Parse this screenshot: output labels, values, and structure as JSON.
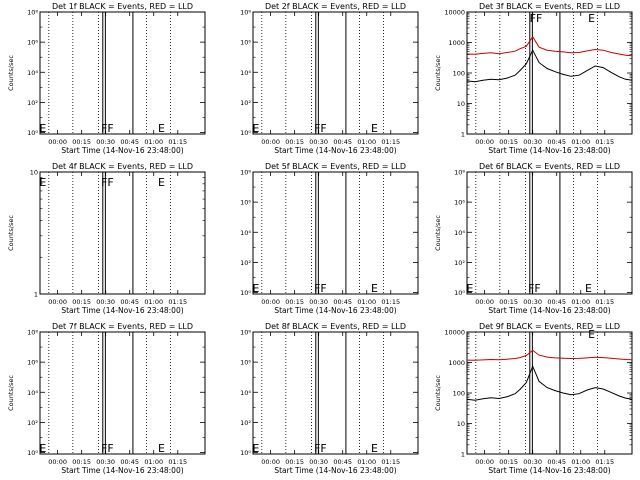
{
  "chart_data": [
    {
      "type": "line",
      "title": "Det 1f BLACK = Events, RED = LLD",
      "xlabel": "Start Time (14-Nov-16 23:48:00)",
      "ylabel": "Counts/sec",
      "xticks": [
        "00:00",
        "00:15",
        "00:30",
        "00:45",
        "01:00",
        "01:15"
      ],
      "yscale": "log",
      "ylim": [
        0.8,
        100000000
      ],
      "ytick_labels": [
        "10⁰",
        "10²",
        "10⁴",
        "10⁶",
        "10⁸"
      ],
      "ytick_values": [
        1,
        100,
        10000,
        1000000,
        100000000
      ],
      "markers": [
        "E",
        "FF",
        "E"
      ],
      "series": []
    },
    {
      "type": "line",
      "title": "Det 2f BLACK = Events, RED = LLD",
      "xlabel": "Start Time (14-Nov-16 23:48:00)",
      "ylabel": "",
      "xticks": [
        "00:00",
        "00:15",
        "00:30",
        "00:45",
        "01:00",
        "01:15"
      ],
      "yscale": "log",
      "ylim": [
        0.8,
        100000000
      ],
      "ytick_labels": [
        "10⁰",
        "10²",
        "10⁴",
        "10⁶",
        "10⁸"
      ],
      "ytick_values": [
        1,
        100,
        10000,
        1000000,
        100000000
      ],
      "markers": [
        "E",
        "FF",
        "E"
      ],
      "series": []
    },
    {
      "type": "line",
      "title": "Det 3f BLACK = Events, RED = LLD",
      "xlabel": "Start Time (14-Nov-16 23:48:00)",
      "ylabel": "Counts/sec",
      "xticks": [
        "00:00",
        "00:15",
        "00:30",
        "00:45",
        "01:00",
        "01:15"
      ],
      "yscale": "log",
      "ylim": [
        1,
        10000
      ],
      "ytick_labels": [
        "1",
        "10",
        "100",
        "1000",
        "10000"
      ],
      "ytick_values": [
        1,
        10,
        100,
        1000,
        10000
      ],
      "markers": [
        "FF",
        "E"
      ],
      "series": [
        {
          "color": "#cc0000",
          "x": [
            -11,
            -6,
            -1,
            4,
            9,
            14,
            19,
            22,
            26,
            30,
            34,
            39,
            44,
            49,
            54,
            59,
            64,
            69,
            74,
            79,
            84,
            88,
            92
          ],
          "y": [
            420,
            410,
            440,
            460,
            430,
            470,
            520,
            620,
            750,
            1550,
            700,
            560,
            520,
            490,
            460,
            470,
            530,
            590,
            560,
            470,
            420,
            380,
            370
          ]
        },
        {
          "color": "#000000",
          "x": [
            -11,
            -6,
            -1,
            4,
            9,
            14,
            19,
            22,
            26,
            30,
            34,
            39,
            44,
            49,
            54,
            59,
            64,
            69,
            74,
            79,
            84,
            88,
            92
          ],
          "y": [
            55,
            52,
            58,
            62,
            60,
            68,
            85,
            120,
            200,
            560,
            220,
            140,
            110,
            90,
            78,
            85,
            120,
            170,
            150,
            105,
            75,
            62,
            58
          ]
        }
      ]
    },
    {
      "type": "line",
      "title": "Det 4f BLACK = Events, RED = LLD",
      "xlabel": "Start Time (14-Nov-16 23:48:00)",
      "ylabel": "Counts/sec",
      "xticks": [
        "00:00",
        "00:15",
        "00:30",
        "00:45",
        "01:00",
        "01:15"
      ],
      "yscale": "log",
      "ylim": [
        1,
        10
      ],
      "ytick_labels": [
        "1",
        "10"
      ],
      "ytick_values": [
        1,
        10
      ],
      "markers": [
        "E",
        "FF",
        "E"
      ],
      "series": []
    },
    {
      "type": "line",
      "title": "Det 5f BLACK = Events, RED = LLD",
      "xlabel": "Start Time (14-Nov-16 23:48:00)",
      "ylabel": "",
      "xticks": [
        "00:00",
        "00:15",
        "00:30",
        "00:45",
        "01:00",
        "01:15"
      ],
      "yscale": "log",
      "ylim": [
        0.8,
        100000000
      ],
      "ytick_labels": [
        "10⁰",
        "10²",
        "10⁴",
        "10⁶",
        "10⁸"
      ],
      "ytick_values": [
        1,
        100,
        10000,
        1000000,
        100000000
      ],
      "markers": [
        "E",
        "FF",
        "E"
      ],
      "series": []
    },
    {
      "type": "line",
      "title": "Det 6f BLACK = Events, RED = LLD",
      "xlabel": "Start Time (14-Nov-16 23:48:00)",
      "ylabel": "Counts/sec",
      "xticks": [
        "00:00",
        "00:15",
        "00:30",
        "00:45",
        "01:00",
        "01:15"
      ],
      "yscale": "log",
      "ylim": [
        0.8,
        100000000
      ],
      "ytick_labels": [
        "10⁰",
        "10²",
        "10⁴",
        "10⁶",
        "10⁸"
      ],
      "ytick_values": [
        1,
        100,
        10000,
        1000000,
        100000000
      ],
      "markers": [
        "E",
        "FF",
        "E"
      ],
      "series": []
    },
    {
      "type": "line",
      "title": "Det 7f BLACK = Events, RED = LLD",
      "xlabel": "Start Time (14-Nov-16 23:48:00)",
      "ylabel": "Counts/sec",
      "xticks": [
        "00:00",
        "00:15",
        "00:30",
        "00:45",
        "01:00",
        "01:15"
      ],
      "yscale": "log",
      "ylim": [
        0.8,
        100000000
      ],
      "ytick_labels": [
        "10⁰",
        "10²",
        "10⁴",
        "10⁶",
        "10⁸"
      ],
      "ytick_values": [
        1,
        100,
        10000,
        1000000,
        100000000
      ],
      "markers": [
        "E",
        "FF",
        "E"
      ],
      "series": []
    },
    {
      "type": "line",
      "title": "Det 8f BLACK = Events, RED = LLD",
      "xlabel": "Start Time (14-Nov-16 23:48:00)",
      "ylabel": "",
      "xticks": [
        "00:00",
        "00:15",
        "00:30",
        "00:45",
        "01:00",
        "01:15"
      ],
      "yscale": "log",
      "ylim": [
        0.8,
        100000000
      ],
      "ytick_labels": [
        "10⁰",
        "10²",
        "10⁴",
        "10⁶",
        "10⁸"
      ],
      "ytick_values": [
        1,
        100,
        10000,
        1000000,
        100000000
      ],
      "markers": [
        "E",
        "FF",
        "E"
      ],
      "series": []
    },
    {
      "type": "line",
      "title": "Det 9f BLACK = Events, RED = LLD",
      "xlabel": "Start Time (14-Nov-16 23:48:00)",
      "ylabel": "Counts/sec",
      "xticks": [
        "00:00",
        "00:15",
        "00:30",
        "00:45",
        "01:00",
        "01:15"
      ],
      "yscale": "log",
      "ylim": [
        1,
        10000
      ],
      "ytick_labels": [
        "1",
        "10",
        "100",
        "1000",
        "10000"
      ],
      "ytick_values": [
        1,
        10,
        100,
        1000,
        10000
      ],
      "markers": [
        "E"
      ],
      "series": [
        {
          "color": "#cc0000",
          "x": [
            -11,
            -6,
            -1,
            4,
            9,
            14,
            19,
            22,
            26,
            30,
            34,
            39,
            44,
            49,
            54,
            59,
            64,
            69,
            74,
            79,
            84,
            88,
            92
          ],
          "y": [
            1200,
            1180,
            1220,
            1250,
            1230,
            1280,
            1350,
            1450,
            1700,
            2500,
            1750,
            1500,
            1420,
            1380,
            1350,
            1360,
            1420,
            1480,
            1450,
            1380,
            1300,
            1250,
            1230
          ]
        },
        {
          "color": "#000000",
          "x": [
            -11,
            -6,
            -1,
            4,
            9,
            14,
            19,
            22,
            26,
            30,
            34,
            39,
            44,
            49,
            54,
            59,
            64,
            69,
            74,
            79,
            84,
            88,
            92
          ],
          "y": [
            62,
            58,
            65,
            70,
            66,
            75,
            95,
            130,
            220,
            750,
            240,
            150,
            120,
            100,
            88,
            95,
            125,
            150,
            135,
            105,
            80,
            68,
            62
          ]
        }
      ]
    }
  ]
}
